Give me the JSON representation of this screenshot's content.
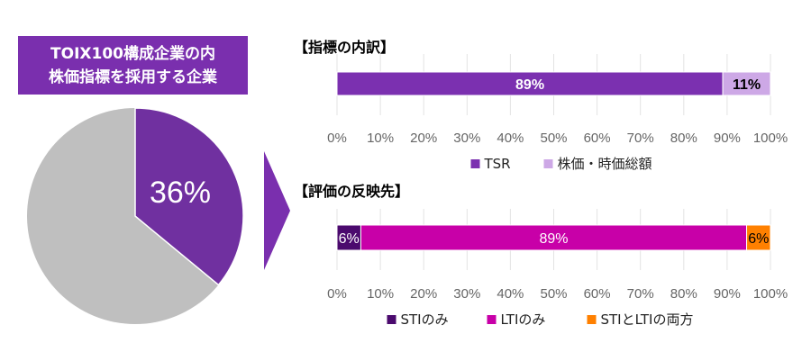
{
  "title_box": {
    "line1": "TOIX100構成企業の内",
    "line2": "株価指標を採用する企業"
  },
  "pie": {
    "label": "36%",
    "value": 36,
    "colors": {
      "share": "#7030a0",
      "rest": "#bfbfbf"
    }
  },
  "chart_data": [
    {
      "type": "pie",
      "values": [
        36,
        64
      ],
      "data_labels": [
        "36%"
      ]
    },
    {
      "type": "bar",
      "orientation": "horizontal-stacked",
      "title": "【指標の内訳】",
      "xlim": [
        0,
        100
      ],
      "x_ticks": [
        "0%",
        "10%",
        "20%",
        "30%",
        "40%",
        "50%",
        "60%",
        "70%",
        "80%",
        "90%",
        "100%"
      ],
      "grid": true,
      "legend_placement": "bottom",
      "series": [
        {
          "name": "TSR",
          "value": 89,
          "label": "89%",
          "color": "#7b30b0",
          "label_color": "#ffffff"
        },
        {
          "name": "株価・時価総額",
          "value": 11,
          "label": "11%",
          "color": "#cda8e6",
          "label_color": "#000000"
        }
      ]
    },
    {
      "type": "bar",
      "orientation": "horizontal-stacked",
      "title": "【評価の反映先】",
      "xlim": [
        0,
        100
      ],
      "x_ticks": [
        "0%",
        "10%",
        "20%",
        "30%",
        "40%",
        "50%",
        "60%",
        "70%",
        "80%",
        "90%",
        "100%"
      ],
      "grid": true,
      "legend_placement": "bottom",
      "series": [
        {
          "name": "STIのみ",
          "value": 5.5,
          "label": "6%",
          "color": "#4b0a6e",
          "label_color": "#ffffff"
        },
        {
          "name": "LTIのみ",
          "value": 89,
          "label": "89%",
          "color": "#c800a8",
          "label_color": "#ffffff"
        },
        {
          "name": "STIとLTIの両方",
          "value": 5.5,
          "label": "6%",
          "color": "#ff8000",
          "label_color": "#000000"
        }
      ]
    }
  ]
}
